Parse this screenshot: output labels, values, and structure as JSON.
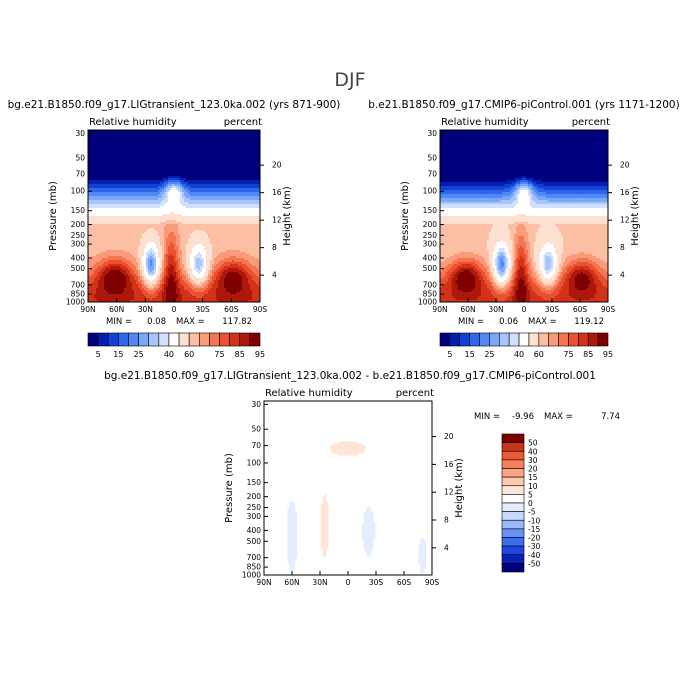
{
  "page_title": "DJF",
  "scale_colors": {
    "full": [
      "#00007f",
      "#0020b0",
      "#1540d6",
      "#2d66e8",
      "#5288f2",
      "#7ba7f8",
      "#a6c5fb",
      "#cfdffc",
      "#ffffff",
      "#fde0d0",
      "#fcbfa3",
      "#f99a78",
      "#f47551",
      "#ea512f",
      "#d23218",
      "#ae180c",
      "#7f0000"
    ],
    "diff": [
      "#00007f",
      "#0a20b8",
      "#1e46e0",
      "#3c6cf0",
      "#6892f7",
      "#9ab8fb",
      "#c7d9fd",
      "#e4edfe",
      "#ffffff",
      "#fde6d6",
      "#fcc9ae",
      "#f9a685",
      "#f47f5a",
      "#e85a34",
      "#c8341a",
      "#7f0000"
    ]
  },
  "chart_data": [
    {
      "type": "heatmap",
      "name": "case-panel",
      "title": "bg.e21.B1850.f09_g17.LIGtransient_123.0ka.002 (yrs 871-900)",
      "field_label": "Relative humidity",
      "units_label": "percent",
      "ylabel": "Pressure (mb)",
      "ylabel_right": "Height (km)",
      "x_ticks": [
        "90N",
        "60N",
        "30N",
        "0",
        "30S",
        "60S",
        "90S"
      ],
      "pressure_ticks": [
        "1000",
        "850",
        "700",
        "500",
        "400",
        "300",
        "250",
        "200",
        "150",
        "100",
        "70",
        "50",
        "30"
      ],
      "pressure_values": [
        1000,
        850,
        700,
        500,
        400,
        300,
        250,
        200,
        150,
        100,
        70,
        50,
        30
      ],
      "height_ticks": [
        "4",
        "8",
        "12",
        "16",
        "20"
      ],
      "height_values": [
        4,
        8,
        12,
        16,
        20
      ],
      "min_label": "MIN =",
      "min_value": "0.08",
      "max_label": "MAX =",
      "max_value": "117.82",
      "levels": [
        5,
        10,
        15,
        20,
        25,
        30,
        35,
        40,
        50,
        60,
        65,
        70,
        75,
        80,
        85,
        90,
        95
      ],
      "colorbar_labels": [
        "5",
        "15",
        "25",
        "40",
        "60",
        "75",
        "85",
        "95"
      ],
      "scale": "full"
    },
    {
      "type": "heatmap",
      "name": "control-panel",
      "title": "b.e21.B1850.f09_g17.CMIP6-piControl.001 (yrs 1171-1200)",
      "field_label": "Relative humidity",
      "units_label": "percent",
      "ylabel": "Pressure (mb)",
      "ylabel_right": "Height (km)",
      "x_ticks": [
        "90N",
        "60N",
        "30N",
        "0",
        "30S",
        "60S",
        "90S"
      ],
      "pressure_ticks": [
        "1000",
        "850",
        "700",
        "500",
        "400",
        "300",
        "250",
        "200",
        "150",
        "100",
        "70",
        "50",
        "30"
      ],
      "pressure_values": [
        1000,
        850,
        700,
        500,
        400,
        300,
        250,
        200,
        150,
        100,
        70,
        50,
        30
      ],
      "height_ticks": [
        "4",
        "8",
        "12",
        "16",
        "20"
      ],
      "height_values": [
        4,
        8,
        12,
        16,
        20
      ],
      "min_label": "MIN =",
      "min_value": "0.06",
      "max_label": "MAX =",
      "max_value": "119.12",
      "levels": [
        5,
        10,
        15,
        20,
        25,
        30,
        35,
        40,
        50,
        60,
        65,
        70,
        75,
        80,
        85,
        90,
        95
      ],
      "colorbar_labels": [
        "5",
        "15",
        "25",
        "40",
        "60",
        "75",
        "85",
        "95"
      ],
      "scale": "full"
    },
    {
      "type": "heatmap",
      "name": "difference-panel",
      "title": "bg.e21.B1850.f09_g17.LIGtransient_123.0ka.002 - b.e21.B1850.f09_g17.CMIP6-piControl.001",
      "field_label": "Relative humidity",
      "units_label": "percent",
      "ylabel": "Pressure (mb)",
      "ylabel_right": "Height (km)",
      "x_ticks": [
        "90N",
        "60N",
        "30N",
        "0",
        "30S",
        "60S",
        "90S"
      ],
      "pressure_ticks": [
        "1000",
        "850",
        "700",
        "500",
        "400",
        "300",
        "250",
        "200",
        "150",
        "100",
        "70",
        "50",
        "30"
      ],
      "pressure_values": [
        1000,
        850,
        700,
        500,
        400,
        300,
        250,
        200,
        150,
        100,
        70,
        50,
        30
      ],
      "height_ticks": [
        "4",
        "8",
        "12",
        "16",
        "20"
      ],
      "height_values": [
        4,
        8,
        12,
        16,
        20
      ],
      "min_label": "MIN =",
      "min_value": "-9.96",
      "max_label": "MAX =",
      "max_value": "7.74",
      "levels": [
        -50,
        -40,
        -30,
        -20,
        -15,
        -10,
        -5,
        0,
        5,
        10,
        15,
        20,
        30,
        40,
        50
      ],
      "colorbar_labels": [
        "50",
        "40",
        "30",
        "20",
        "15",
        "10",
        "5",
        "0",
        "-5",
        "-10",
        "-15",
        "-20",
        "-30",
        "-40",
        "-50"
      ],
      "scale": "diff"
    }
  ]
}
